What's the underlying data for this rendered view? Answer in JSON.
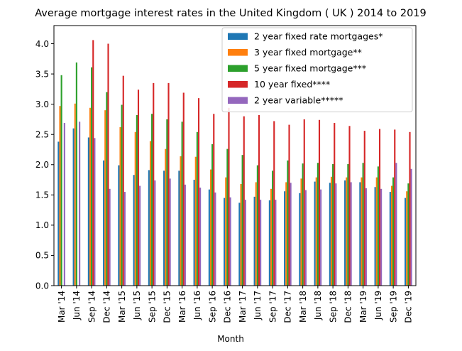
{
  "chart_data": {
    "type": "bar",
    "title": "Average mortgage interest rates in the United Kingdom ( UK ) 2014 to 2019",
    "xlabel": "Month",
    "ylabel": "",
    "ylim": [
      0,
      4.3
    ],
    "yticks": [
      0.0,
      0.5,
      1.0,
      1.5,
      2.0,
      2.5,
      3.0,
      3.5,
      4.0
    ],
    "ytick_labels": [
      "0.0",
      "0.5",
      "1.0",
      "1.5",
      "2.0",
      "2.5",
      "3.0",
      "3.5",
      "4.0"
    ],
    "grid": false,
    "legend_position": "top-right",
    "categories": [
      "Mar '14",
      "Jun '14",
      "Sep '14",
      "Dec '14",
      "Mar '15",
      "Jun '15",
      "Sep '15",
      "Dec '15",
      "Mar '16",
      "Jun '16",
      "Sep '16",
      "Dec '16",
      "Mar '17",
      "Jun '17",
      "Sep '17",
      "Dec '17",
      "Mar '18",
      "Jun '18",
      "Sep '18",
      "Dec '18",
      "Mar '19",
      "Jun '19",
      "Sep '19",
      "Dec '19"
    ],
    "series": [
      {
        "name": "2 year fixed rate mortgages*",
        "color": "#1f77b4",
        "values": [
          2.38,
          2.6,
          2.45,
          2.07,
          1.99,
          1.83,
          1.91,
          1.9,
          1.9,
          1.75,
          1.59,
          1.45,
          1.37,
          1.47,
          1.41,
          1.56,
          1.53,
          1.72,
          1.7,
          1.74,
          1.71,
          1.63,
          1.55,
          1.45
        ]
      },
      {
        "name": "3 year fixed mortgage**",
        "color": "#ff7f0e",
        "values": [
          2.97,
          3.01,
          2.94,
          2.9,
          2.62,
          2.54,
          2.39,
          2.26,
          2.14,
          2.13,
          1.92,
          1.79,
          1.68,
          1.71,
          1.6,
          1.71,
          1.77,
          1.79,
          1.8,
          1.79,
          1.79,
          1.79,
          1.65,
          1.56
        ]
      },
      {
        "name": "5 year fixed mortgage***",
        "color": "#2ca02c",
        "values": [
          3.48,
          3.69,
          3.61,
          3.2,
          2.99,
          2.82,
          2.84,
          2.75,
          2.71,
          2.54,
          2.34,
          2.26,
          2.16,
          1.99,
          1.9,
          2.07,
          2.02,
          2.03,
          2.01,
          2.01,
          2.03,
          1.97,
          1.79,
          1.69
        ]
      },
      {
        "name": "10 year fixed****",
        "color": "#d62728",
        "values": [
          null,
          null,
          4.06,
          4.0,
          3.47,
          3.24,
          3.35,
          3.35,
          3.19,
          3.1,
          2.84,
          2.94,
          2.8,
          2.82,
          2.72,
          2.66,
          2.75,
          2.74,
          2.69,
          2.64,
          2.56,
          2.59,
          2.58,
          2.54
        ]
      },
      {
        "name": "2 year variable*****",
        "color": "#9467bd",
        "values": [
          2.69,
          2.71,
          2.44,
          1.6,
          1.55,
          1.65,
          1.74,
          1.77,
          1.67,
          1.62,
          1.54,
          1.46,
          1.42,
          1.42,
          1.42,
          1.7,
          1.58,
          1.59,
          1.69,
          1.71,
          1.61,
          1.6,
          2.03,
          1.93
        ]
      }
    ]
  }
}
